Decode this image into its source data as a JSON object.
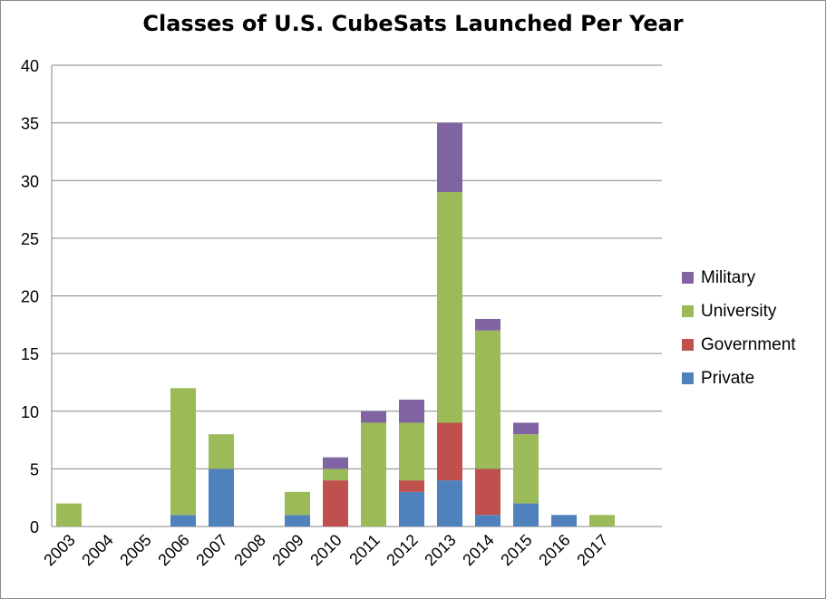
{
  "chart_data": {
    "type": "bar",
    "stacked": true,
    "title": "Classes of U.S. CubeSats Launched Per Year",
    "xlabel": "",
    "ylabel": "",
    "ylim": [
      0,
      40
    ],
    "yticks": [
      0,
      5,
      10,
      15,
      20,
      25,
      30,
      35,
      40
    ],
    "grid": true,
    "legend_position": "right",
    "categories": [
      "2003",
      "2004",
      "2005",
      "2006",
      "2007",
      "2008",
      "2009",
      "2010",
      "2011",
      "2012",
      "2013",
      "2014",
      "2015",
      "2016",
      "2017"
    ],
    "series": [
      {
        "name": "Private",
        "color": "#4f81bd",
        "values": [
          0,
          0,
          0,
          1,
          5,
          0,
          1,
          0,
          0,
          3,
          4,
          1,
          2,
          1,
          0
        ]
      },
      {
        "name": "Government",
        "color": "#c0504d",
        "values": [
          0,
          0,
          0,
          0,
          0,
          0,
          0,
          4,
          0,
          1,
          5,
          4,
          0,
          0,
          0
        ]
      },
      {
        "name": "University",
        "color": "#9bbb59",
        "values": [
          2,
          0,
          0,
          11,
          3,
          0,
          2,
          1,
          9,
          5,
          20,
          12,
          6,
          0,
          1
        ]
      },
      {
        "name": "Military",
        "color": "#8064a2",
        "values": [
          0,
          0,
          0,
          0,
          0,
          0,
          0,
          1,
          1,
          2,
          6,
          1,
          1,
          0,
          0
        ]
      }
    ],
    "legend_order": [
      "Military",
      "University",
      "Government",
      "Private"
    ]
  }
}
